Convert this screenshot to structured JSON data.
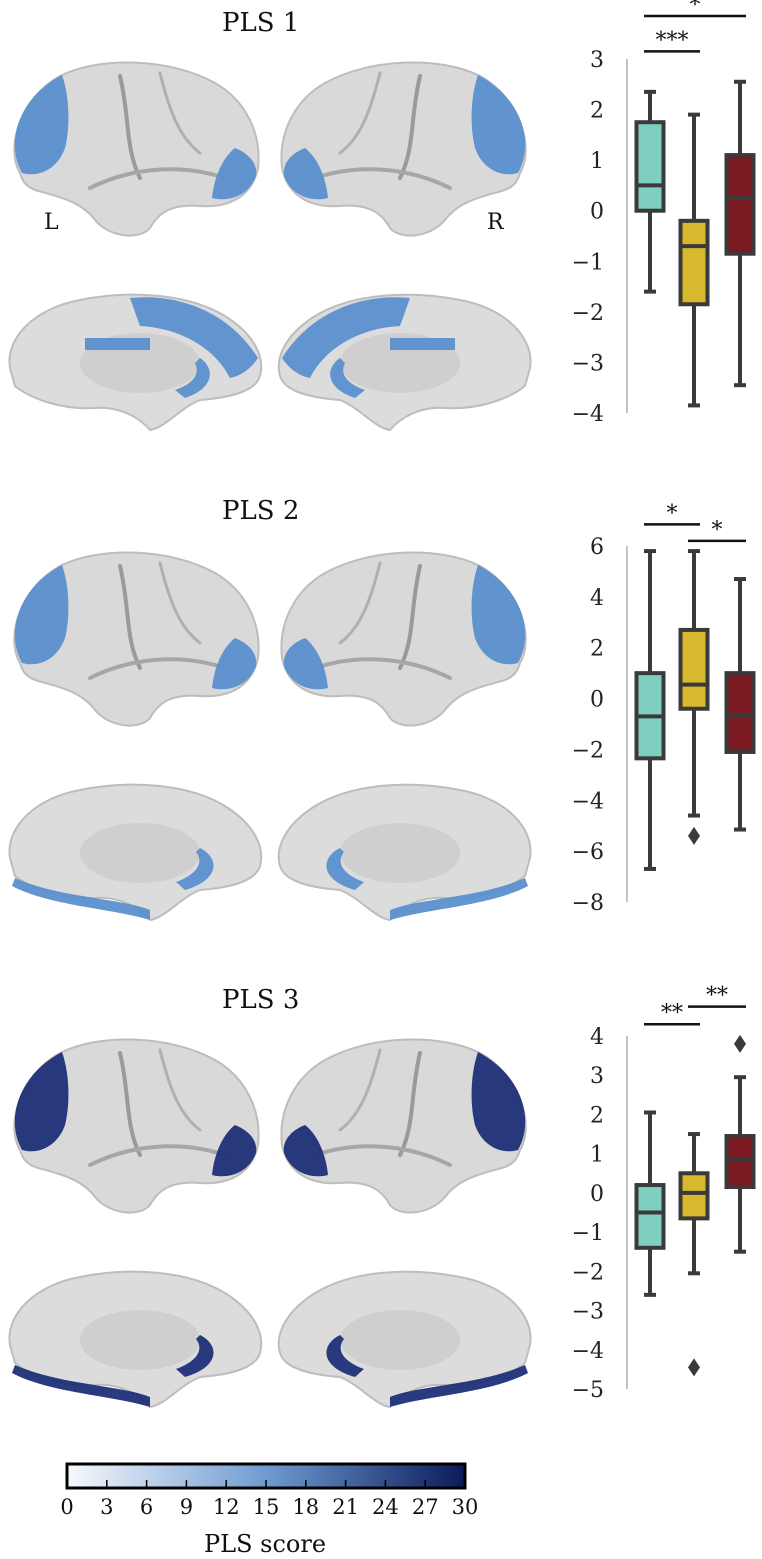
{
  "panels": [
    {
      "title": "PLS 1",
      "brain_color": "#5b8fce",
      "left_label": "L",
      "right_label": "R"
    },
    {
      "title": "PLS 2",
      "brain_color": "#5b8fce"
    },
    {
      "title": "PLS 3",
      "brain_color": "#1f2f78"
    }
  ],
  "chart_data": [
    {
      "type": "box",
      "title": "PLS 1",
      "ylim": [
        -4,
        3
      ],
      "yticks": [
        3,
        2,
        1,
        0,
        -1,
        -2,
        -3,
        -4
      ],
      "ytick_labels": [
        "3",
        "2",
        "1",
        "0",
        "−1",
        "−2",
        "−3",
        "−4"
      ],
      "colors": [
        "#7ecfbf",
        "#d6b92c",
        "#7b1a20"
      ],
      "boxes": [
        {
          "q1": 0.0,
          "median": 0.5,
          "q3": 1.75,
          "whislo": -1.6,
          "whishi": 2.35,
          "fliers": []
        },
        {
          "q1": -1.85,
          "median": -0.7,
          "q3": -0.2,
          "whislo": -3.85,
          "whishi": 1.9,
          "fliers": []
        },
        {
          "q1": -0.85,
          "median": 0.25,
          "q3": 1.1,
          "whislo": -3.45,
          "whishi": 2.55,
          "fliers": []
        }
      ],
      "significance": [
        {
          "from": 0,
          "to": 1,
          "label": "***",
          "level": 3.15
        },
        {
          "from": 0,
          "to": 2,
          "label": "*",
          "level": 3.85
        }
      ]
    },
    {
      "type": "box",
      "title": "PLS 2",
      "ylim": [
        -8,
        6
      ],
      "yticks": [
        6,
        4,
        2,
        0,
        -2,
        -4,
        -6,
        -8
      ],
      "ytick_labels": [
        "6",
        "4",
        "2",
        "0",
        "−2",
        "−4",
        "−6",
        "−8"
      ],
      "colors": [
        "#7ecfbf",
        "#d6b92c",
        "#7b1a20"
      ],
      "boxes": [
        {
          "q1": -2.35,
          "median": -0.7,
          "q3": 1.0,
          "whislo": -6.7,
          "whishi": 5.8,
          "fliers": []
        },
        {
          "q1": -0.4,
          "median": 0.55,
          "q3": 2.7,
          "whislo": -4.6,
          "whishi": 5.8,
          "fliers": [
            -5.4
          ]
        },
        {
          "q1": -2.1,
          "median": -0.65,
          "q3": 1.0,
          "whislo": -5.15,
          "whishi": 4.7,
          "fliers": []
        }
      ],
      "significance": [
        {
          "from": 0,
          "to": 1,
          "label": "*",
          "level": 6.85
        },
        {
          "from": 1,
          "to": 2,
          "label": "*",
          "level": 6.2
        }
      ]
    },
    {
      "type": "box",
      "title": "PLS 3",
      "ylim": [
        -5,
        4
      ],
      "yticks": [
        4,
        3,
        2,
        1,
        0,
        -1,
        -2,
        -3,
        -4,
        -5
      ],
      "ytick_labels": [
        "4",
        "3",
        "2",
        "1",
        "0",
        "−1",
        "−2",
        "−3",
        "−4",
        "−5"
      ],
      "colors": [
        "#7ecfbf",
        "#d6b92c",
        "#7b1a20"
      ],
      "boxes": [
        {
          "q1": -1.4,
          "median": -0.5,
          "q3": 0.2,
          "whislo": -2.6,
          "whishi": 2.05,
          "fliers": []
        },
        {
          "q1": -0.65,
          "median": 0.0,
          "q3": 0.5,
          "whislo": -2.05,
          "whishi": 1.5,
          "fliers": [
            -4.45
          ]
        },
        {
          "q1": 0.15,
          "median": 0.85,
          "q3": 1.45,
          "whislo": -1.5,
          "whishi": 2.95,
          "fliers": [
            3.8
          ]
        }
      ],
      "significance": [
        {
          "from": 0,
          "to": 1,
          "label": "**",
          "level": 4.3
        },
        {
          "from": 1,
          "to": 2,
          "label": "**",
          "level": 4.75
        }
      ]
    }
  ],
  "colorbar": {
    "label": "PLS score",
    "min": 0,
    "max": 30,
    "ticks": [
      "0",
      "3",
      "6",
      "9",
      "12",
      "15",
      "18",
      "21",
      "24",
      "27",
      "30"
    ],
    "color_low": "#f7f9fd",
    "color_high": "#0b1a5a"
  }
}
